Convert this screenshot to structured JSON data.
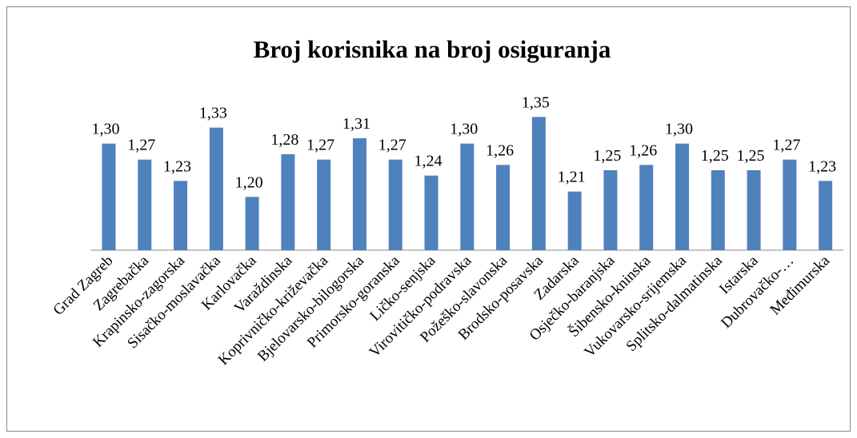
{
  "chart_data": {
    "type": "bar",
    "title": "Broj korisnika na broj osiguranja",
    "categories": [
      "Grad Zagreb",
      "Zagrebačka",
      "Krapinsko-zagorska",
      "Sisačko-moslavačka",
      "Karlovačka",
      "Varaždinska",
      "Koprivničko-križevačka",
      "Bjelovarsko-bilogorska",
      "Primorsko-goranska",
      "Ličko-senjska",
      "Virovitičko-podravska",
      "Požeško-slavonska",
      "Brodsko-posavska",
      "Zadarska",
      "Osječko-baranjska",
      "Šibensko-kninska",
      "Vukovarsko-srijemska",
      "Splitsko-dalmatinska",
      "Istarska",
      "Dubrovačko-…",
      "Međimurska"
    ],
    "values": [
      1.3,
      1.27,
      1.23,
      1.33,
      1.2,
      1.28,
      1.27,
      1.31,
      1.27,
      1.24,
      1.3,
      1.26,
      1.35,
      1.21,
      1.25,
      1.26,
      1.3,
      1.25,
      1.25,
      1.27,
      1.23
    ],
    "value_labels": [
      "1,30",
      "1,27",
      "1,23",
      "1,33",
      "1,20",
      "1,28",
      "1,27",
      "1,31",
      "1,27",
      "1,24",
      "1,30",
      "1,26",
      "1,35",
      "1,21",
      "1,25",
      "1,26",
      "1,30",
      "1,25",
      "1,25",
      "1,27",
      "1,23"
    ],
    "color": "#4f81bd",
    "ylim": [
      1.1,
      1.4
    ]
  }
}
